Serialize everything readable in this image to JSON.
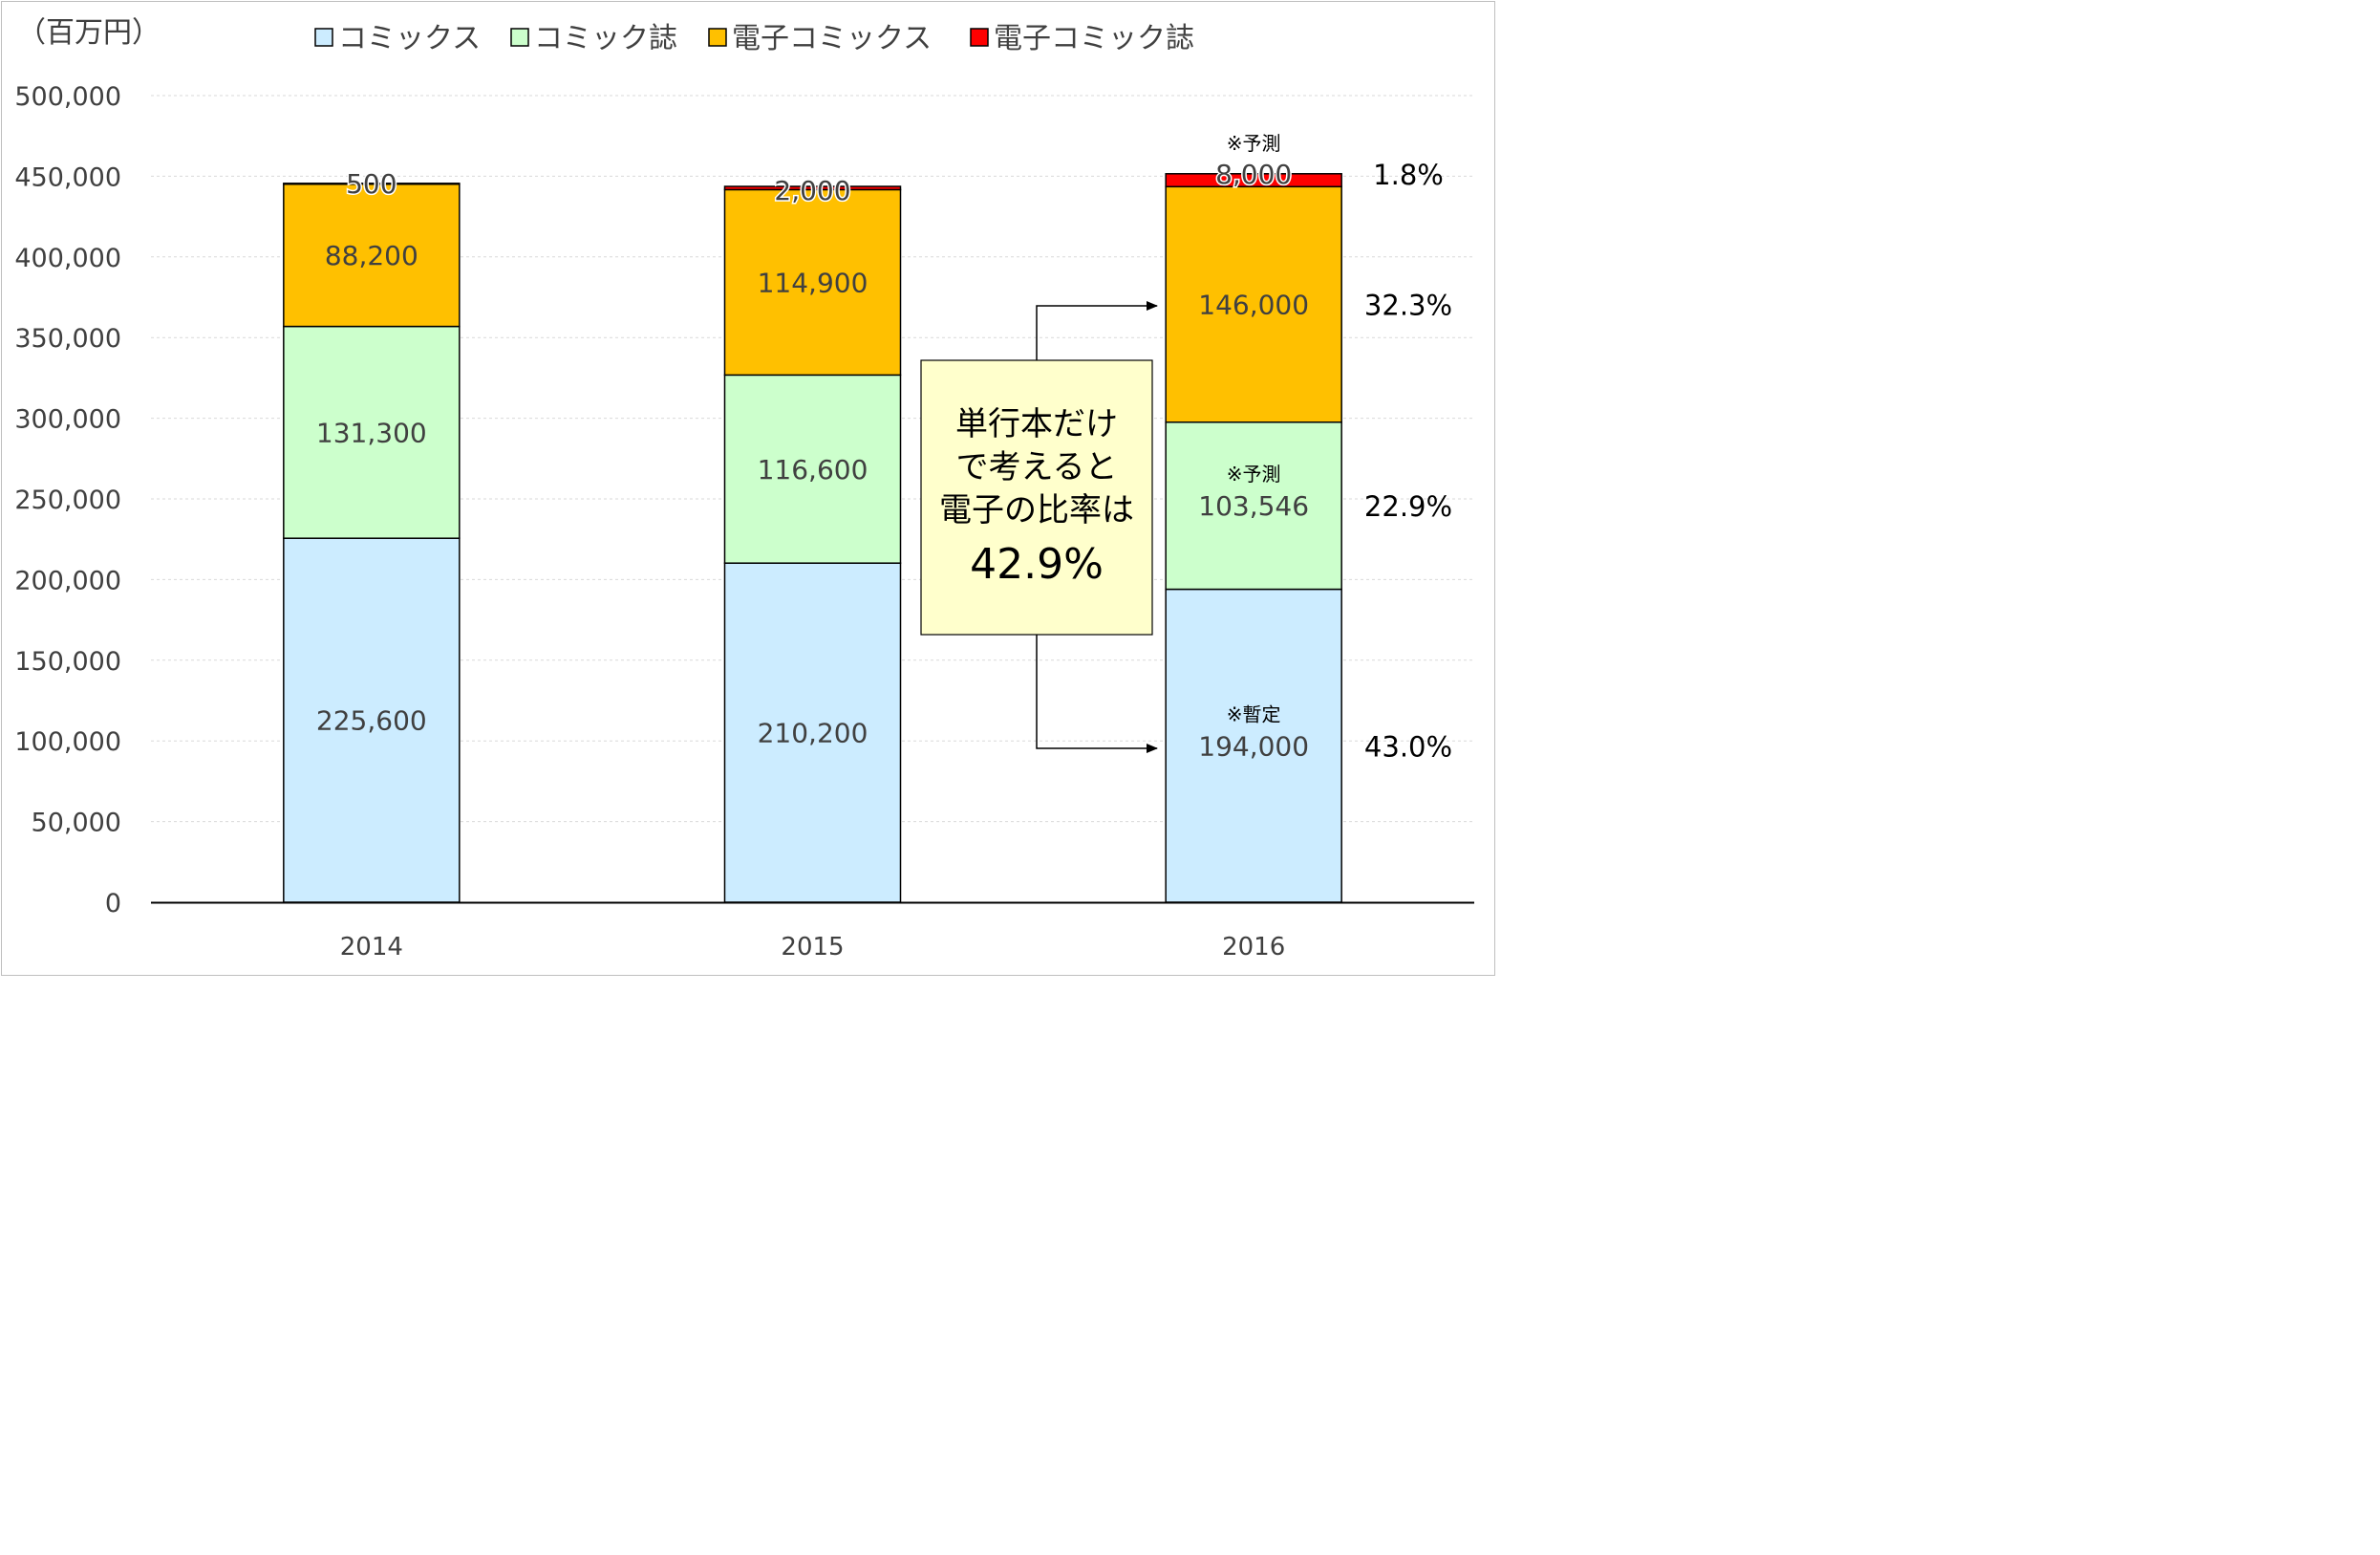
{
  "chart_data": {
    "type": "bar",
    "stacked": true,
    "unit_label": "（百万円）",
    "categories": [
      "2014",
      "2015",
      "2016"
    ],
    "ylim": [
      0,
      500000
    ],
    "yticks": [
      "0",
      "50,000",
      "100,000",
      "150,000",
      "200,000",
      "250,000",
      "300,000",
      "350,000",
      "400,000",
      "450,000",
      "500,000"
    ],
    "grid": true,
    "legend_position": "top",
    "series": [
      {
        "name": "コミックス",
        "color": "#CCECFF",
        "values": [
          225600,
          210200,
          194000
        ],
        "labels": [
          "225,600",
          "210,200",
          "194,000"
        ]
      },
      {
        "name": "コミック誌",
        "color": "#CCFFCC",
        "values": [
          131300,
          116600,
          103546
        ],
        "labels": [
          "131,300",
          "116,600",
          "103,546"
        ]
      },
      {
        "name": "電子コミックス",
        "color": "#FFC000",
        "values": [
          88200,
          114900,
          146000
        ],
        "labels": [
          "88,200",
          "114,900",
          "146,000"
        ]
      },
      {
        "name": "電子コミック誌",
        "color": "#FF0000",
        "values": [
          500,
          2000,
          8000
        ],
        "labels": [
          "500",
          "2,000",
          "8,000"
        ]
      }
    ],
    "annotations": {
      "notes_2016": {
        "comics": "※暫定",
        "magazine": "※予測",
        "top": "※予測"
      },
      "percentages_2016": [
        "43.0%",
        "22.9%",
        "32.3%",
        "1.8%"
      ],
      "callout_lines": [
        "単行本だけ",
        "で考えると",
        "電子の比率は"
      ],
      "callout_value": "42.9%"
    }
  }
}
